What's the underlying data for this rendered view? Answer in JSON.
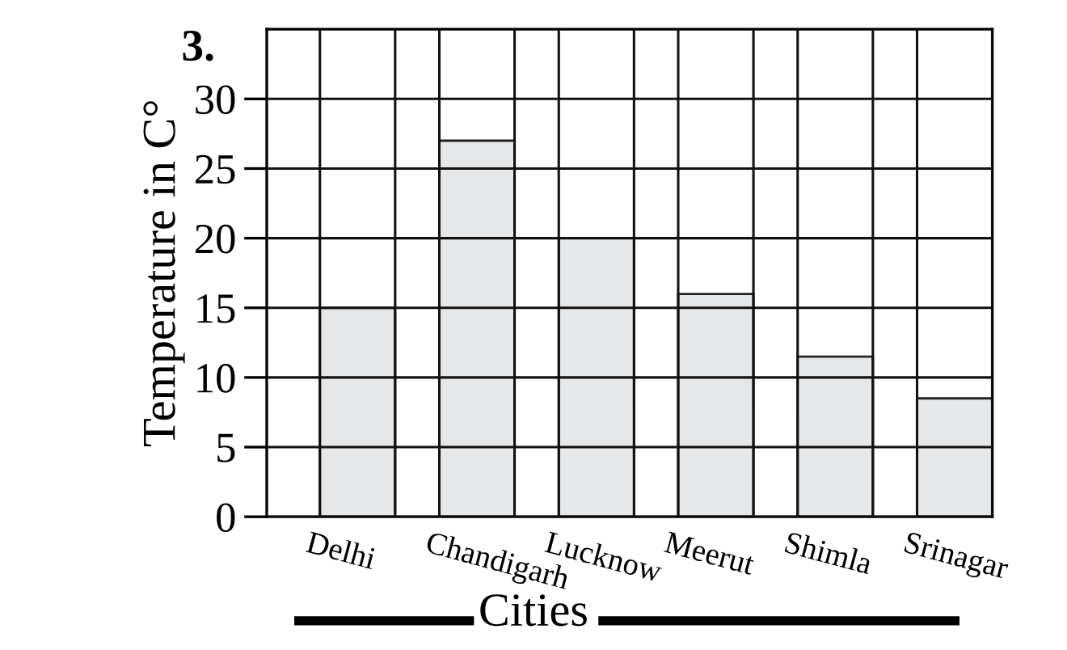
{
  "chart_data": {
    "type": "bar",
    "title": "3.",
    "xlabel": "Cities",
    "ylabel": "Temperature in C°",
    "categories": [
      "Delhi",
      "Chandigarh",
      "Lucknow",
      "Meerut",
      "Shimla",
      "Srinagar"
    ],
    "values": [
      15,
      27,
      20,
      16,
      11.5,
      8.5
    ],
    "color": "#e6e7e8",
    "ylim": [
      0,
      35
    ],
    "yticks": [
      0,
      5,
      10,
      15,
      20,
      25,
      30
    ],
    "grid": true
  }
}
